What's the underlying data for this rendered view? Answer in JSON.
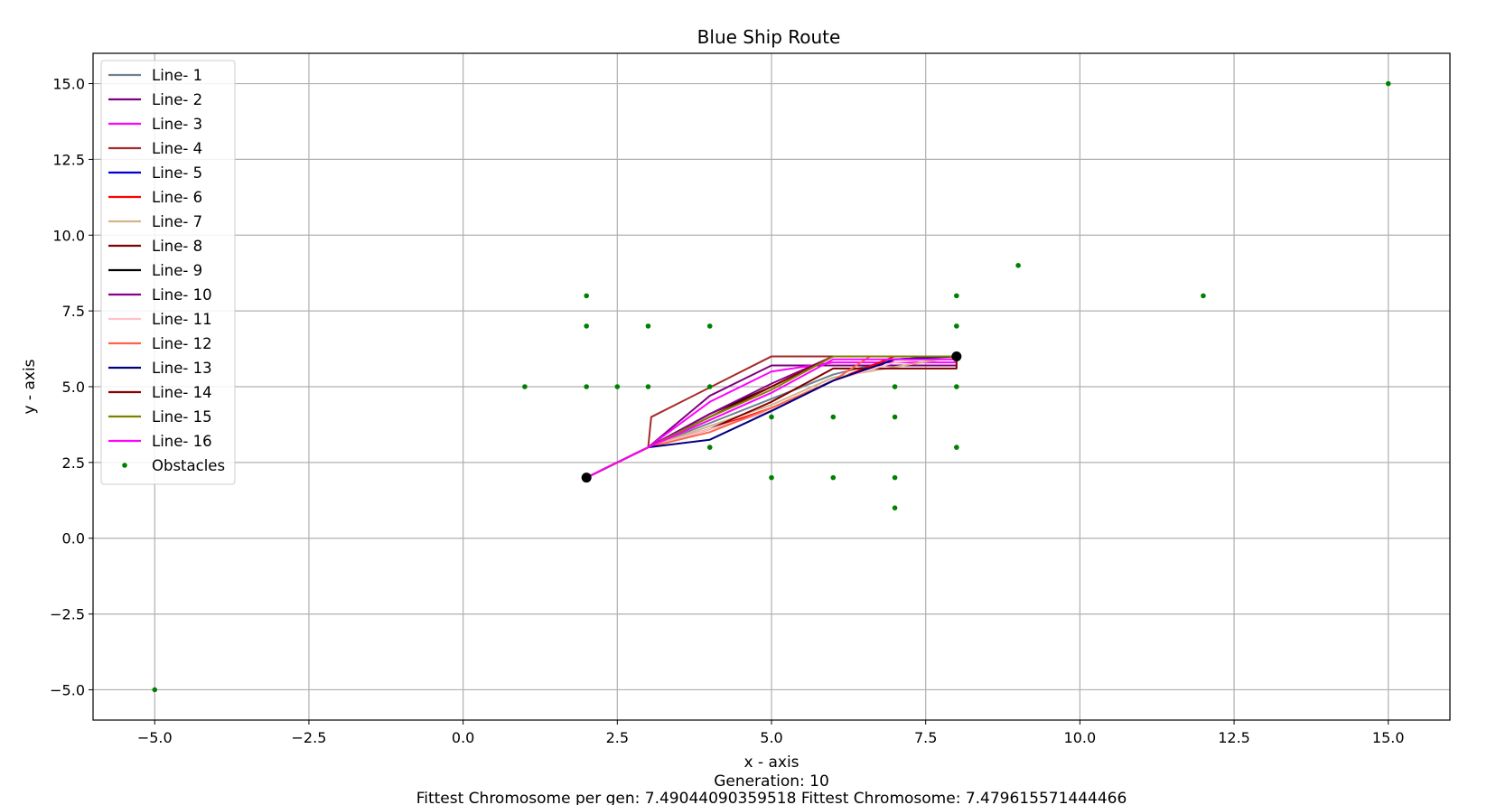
{
  "chart_data": {
    "type": "line",
    "title": "Blue Ship Route",
    "xlabel": "x - axis",
    "ylabel": "y - axis",
    "xlim": [
      -6.0,
      16.0
    ],
    "ylim": [
      -6.0,
      16.0
    ],
    "xticks": [
      -5.0,
      -2.5,
      0.0,
      2.5,
      5.0,
      7.5,
      10.0,
      12.5,
      15.0
    ],
    "xtick_labels": [
      "−5.0",
      "−2.5",
      "0.0",
      "2.5",
      "5.0",
      "7.5",
      "10.0",
      "12.5",
      "15.0"
    ],
    "yticks": [
      -5.0,
      -2.5,
      0.0,
      2.5,
      5.0,
      7.5,
      10.0,
      12.5,
      15.0
    ],
    "ytick_labels": [
      "−5.0",
      "−2.5",
      "0.0",
      "2.5",
      "5.0",
      "7.5",
      "10.0",
      "12.5",
      "15.0"
    ],
    "grid": true,
    "legend_position": "top-left",
    "captions": [
      "Generation: 10",
      "Fittest Chromosome per gen: 7.49044090359518   Fittest Chromosome: 7.479615571444466"
    ],
    "start": [
      2,
      2
    ],
    "end": [
      8,
      6
    ],
    "series": [
      {
        "name": "Line- 1",
        "color": "#708090",
        "x": [
          2,
          3,
          4,
          5,
          6,
          7,
          8
        ],
        "y": [
          2,
          3,
          3.8,
          4.6,
          5.4,
          5.9,
          6
        ]
      },
      {
        "name": "Line- 2",
        "color": "#800080",
        "x": [
          2,
          3,
          4,
          5,
          6,
          8
        ],
        "y": [
          2,
          3,
          4.7,
          5.7,
          5.7,
          5.7
        ]
      },
      {
        "name": "Line- 3",
        "color": "#ff00ff",
        "x": [
          2,
          3,
          4,
          5,
          6,
          8
        ],
        "y": [
          2,
          3,
          4.5,
          5.5,
          5.8,
          5.8
        ]
      },
      {
        "name": "Line- 4",
        "color": "#a52a2a",
        "x": [
          2,
          3,
          3.05,
          5,
          8
        ],
        "y": [
          2,
          3,
          4,
          6,
          6
        ]
      },
      {
        "name": "Line- 5",
        "color": "#0000cd",
        "x": [
          2,
          3,
          4,
          5,
          6,
          7,
          8
        ],
        "y": [
          2,
          3,
          3.6,
          4.2,
          5.2,
          5.9,
          6
        ]
      },
      {
        "name": "Line- 6",
        "color": "#ff0000",
        "x": [
          2,
          3,
          4,
          5,
          6,
          7,
          8
        ],
        "y": [
          2,
          3,
          3.6,
          4.3,
          5.2,
          6,
          6
        ]
      },
      {
        "name": "Line- 7",
        "color": "#d2b48c",
        "x": [
          2,
          3,
          4,
          5,
          6,
          8
        ],
        "y": [
          2,
          3,
          3.7,
          4.4,
          5.3,
          6
        ]
      },
      {
        "name": "Line- 8",
        "color": "#800000",
        "x": [
          2,
          3,
          4,
          5,
          6,
          8,
          8
        ],
        "y": [
          2,
          3,
          3.6,
          4.5,
          5.6,
          5.6,
          6
        ]
      },
      {
        "name": "Line- 9",
        "color": "#000000",
        "x": [
          2,
          3,
          4,
          5,
          6,
          8
        ],
        "y": [
          2,
          3,
          4.1,
          5.0,
          6,
          6
        ]
      },
      {
        "name": "Line- 10",
        "color": "#8b008b",
        "x": [
          2,
          3,
          4,
          5,
          6,
          8
        ],
        "y": [
          2,
          3,
          4.1,
          5.1,
          6,
          6
        ]
      },
      {
        "name": "Line- 11",
        "color": "#ffc0cb",
        "x": [
          2,
          3,
          4,
          5,
          6,
          7,
          8
        ],
        "y": [
          2,
          3,
          3.6,
          4.2,
          5.2,
          5.8,
          6
        ]
      },
      {
        "name": "Line- 12",
        "color": "#ff6347",
        "x": [
          2,
          3,
          4,
          5,
          6,
          6.6,
          8
        ],
        "y": [
          2,
          3,
          3.5,
          4.3,
          5.2,
          6,
          6
        ]
      },
      {
        "name": "Line- 13",
        "color": "#000080",
        "x": [
          2,
          3,
          4,
          5,
          6,
          7,
          8
        ],
        "y": [
          2,
          3,
          3.25,
          4.2,
          5.2,
          5.9,
          6
        ]
      },
      {
        "name": "Line- 14",
        "color": "#8b0000",
        "x": [
          2,
          3,
          4,
          5,
          6,
          8
        ],
        "y": [
          2,
          3,
          4.0,
          5.0,
          6,
          6
        ]
      },
      {
        "name": "Line- 15",
        "color": "#808000",
        "x": [
          2,
          3,
          4,
          5,
          6,
          8
        ],
        "y": [
          2,
          3,
          4.0,
          4.9,
          6,
          6
        ]
      },
      {
        "name": "Line- 16",
        "color": "#ff00ff",
        "x": [
          2,
          3,
          4,
          5,
          6,
          8
        ],
        "y": [
          2,
          3,
          3.9,
          4.8,
          5.9,
          5.9
        ]
      }
    ],
    "obstacles": {
      "name": "Obstacles",
      "color": "#008000",
      "x": [
        -5,
        15,
        1,
        2,
        2,
        2,
        2.5,
        3,
        3,
        4,
        4,
        4,
        5,
        5,
        6,
        6,
        7,
        7,
        7,
        7,
        8,
        8,
        8,
        8,
        9,
        12
      ],
      "y": [
        -5,
        15,
        5,
        5,
        7,
        8,
        5,
        5,
        7,
        3,
        5,
        7,
        2,
        4,
        2,
        4,
        1,
        2,
        4,
        5,
        3,
        5,
        7,
        8,
        9,
        8
      ]
    }
  }
}
